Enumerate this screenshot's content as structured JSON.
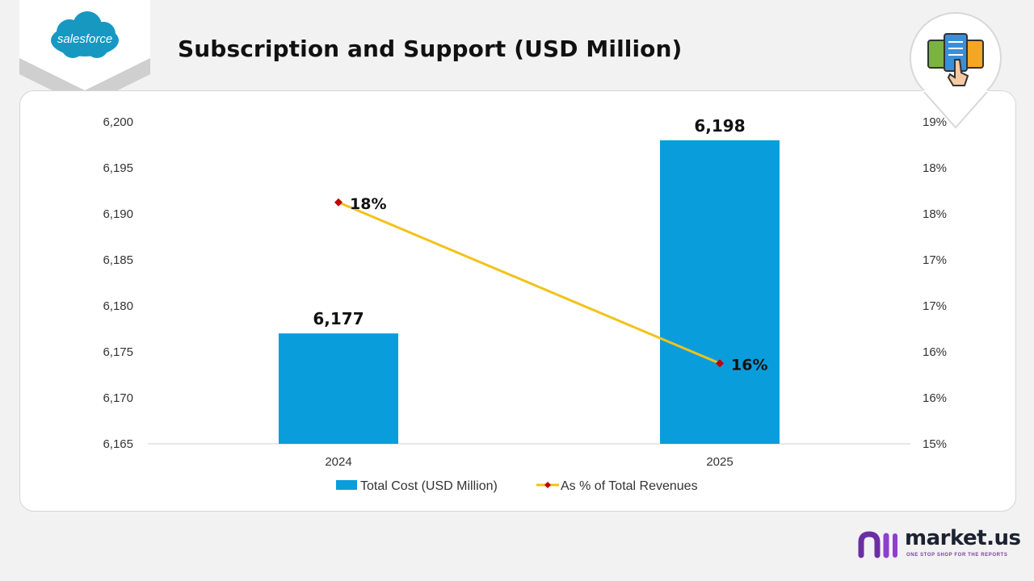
{
  "page": {
    "title": "Subscription and Support (USD Million)",
    "company_logo_text": "salesforce",
    "brand": {
      "name": "market.us",
      "tagline": "ONE STOP SHOP FOR THE REPORTS"
    }
  },
  "chart_data": {
    "type": "bar+line",
    "title": "Subscription and Support (USD Million)",
    "categories": [
      "2024",
      "2025"
    ],
    "series": [
      {
        "name": "Total Cost (USD Million)",
        "type": "bar",
        "axis": "left",
        "values": [
          6177,
          6198
        ],
        "labels": [
          "6,177",
          "6,198"
        ],
        "color": "#0a9ddc"
      },
      {
        "name": "As % of Total Revenues",
        "type": "line",
        "axis": "right",
        "values": [
          18,
          16
        ],
        "labels": [
          "18%",
          "16%"
        ],
        "color": "#f2c21b",
        "marker_color": "#c00000"
      }
    ],
    "left_axis": {
      "min": 6165,
      "max": 6200,
      "ticks": [
        "6,165",
        "6,170",
        "6,175",
        "6,180",
        "6,185",
        "6,190",
        "6,195",
        "6,200"
      ]
    },
    "right_axis": {
      "min": 15,
      "max": 19,
      "ticks": [
        "15%",
        "16%",
        "16%",
        "17%",
        "17%",
        "18%",
        "18%",
        "19%"
      ]
    },
    "gridlines": false,
    "legend_position": "bottom"
  }
}
